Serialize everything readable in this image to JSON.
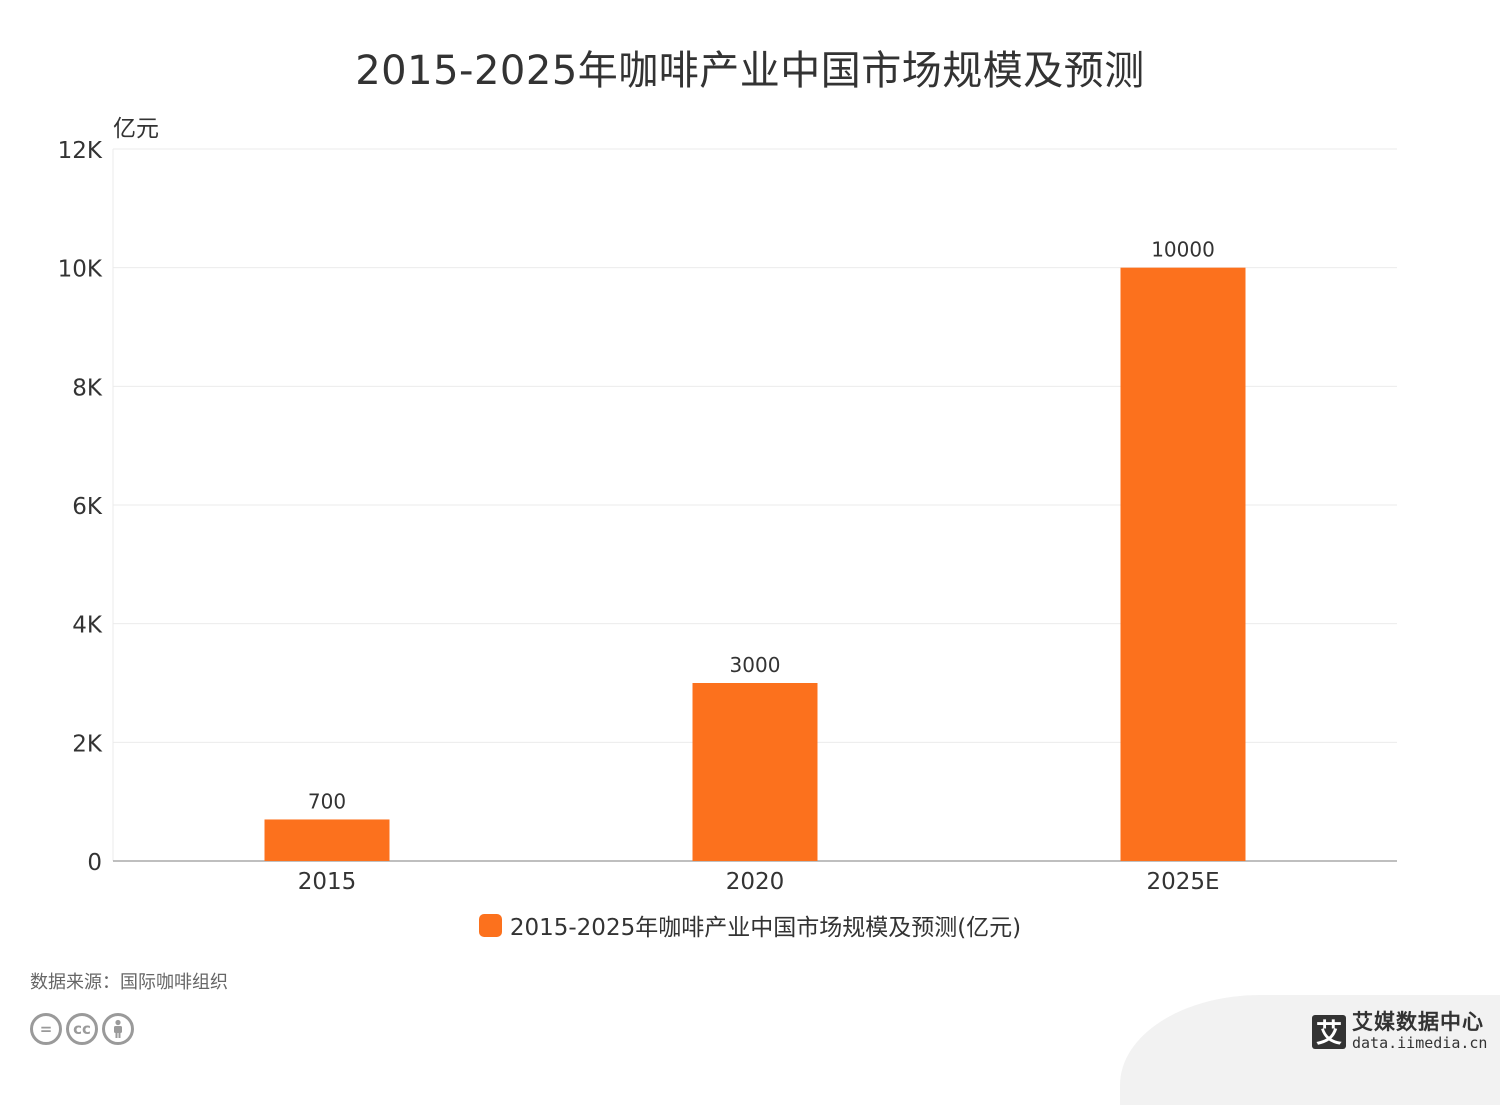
{
  "title": "2015-2025年咖啡产业中国市场规模及预测",
  "colors": {
    "bar": "#fc711d",
    "grid": "#ebebeb",
    "axis": "#aaaaaa",
    "text": "#333333"
  },
  "chart_data": {
    "type": "bar",
    "title": "2015-2025年咖啡产业中国市场规模及预测",
    "ylabel": "亿元",
    "xlabel": "",
    "categories": [
      "2015",
      "2020",
      "2025E"
    ],
    "series": [
      {
        "name": "2015-2025年咖啡产业中国市场规模及预测(亿元)",
        "values": [
          700,
          3000,
          10000
        ]
      }
    ],
    "ylim": [
      0,
      12000
    ],
    "yticks": [
      0,
      2000,
      4000,
      6000,
      8000,
      10000,
      12000
    ],
    "ytick_labels": [
      "0",
      "2K",
      "4K",
      "6K",
      "8K",
      "10K",
      "12K"
    ],
    "data_labels": [
      "700",
      "3000",
      "10000"
    ],
    "grid": true,
    "legend_position": "bottom-center"
  },
  "legend": {
    "label": "2015-2025年咖啡产业中国市场规模及预测(亿元)"
  },
  "footer": {
    "source": "数据来源：国际咖啡组织",
    "cc_icons": [
      "=",
      "cc",
      "person-icon"
    ],
    "brand_logo": "艾",
    "brand_name": "艾媒数据中心",
    "brand_url": "data.iimedia.cn"
  }
}
